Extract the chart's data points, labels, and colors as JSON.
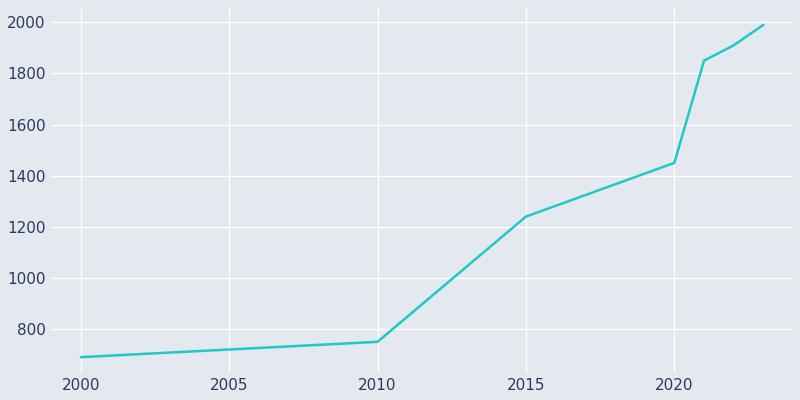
{
  "years": [
    2000,
    2010,
    2015,
    2020,
    2021,
    2022,
    2023
  ],
  "population": [
    690,
    750,
    1240,
    1450,
    1850,
    1910,
    1990
  ],
  "line_color": "#20C8C8",
  "background_color": "#e4e9f0",
  "grid_color": "#ffffff",
  "text_color": "#2d3a5c",
  "xlabel": "",
  "ylabel": "",
  "xlim": [
    1999,
    2024
  ],
  "ylim": [
    630,
    2060
  ],
  "xticks": [
    2000,
    2005,
    2010,
    2015,
    2020
  ],
  "yticks": [
    800,
    1000,
    1200,
    1400,
    1600,
    1800,
    2000
  ],
  "line_width": 1.8
}
